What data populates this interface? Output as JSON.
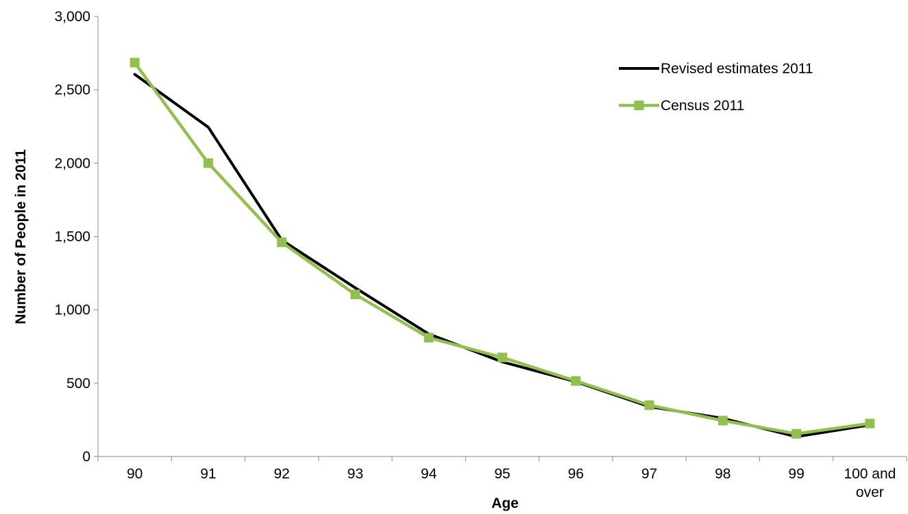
{
  "chart_data": {
    "type": "line",
    "title": "",
    "xlabel": "Age",
    "ylabel": "Number of People in 2011",
    "categories": [
      "90",
      "91",
      "92",
      "93",
      "94",
      "95",
      "96",
      "97",
      "98",
      "99",
      "100 and over"
    ],
    "ylim": [
      0,
      3000
    ],
    "yticks": [
      0,
      500,
      1000,
      1500,
      2000,
      2500,
      3000
    ],
    "ytick_labels": [
      "0",
      "500",
      "1,000",
      "1,500",
      "2,000",
      "2,500",
      "3,000"
    ],
    "grid": false,
    "legend_position": "top-right",
    "series": [
      {
        "name": "Revised estimates 2011",
        "color": "#000000",
        "marker": "none",
        "values": [
          2605,
          2245,
          1475,
          1150,
          835,
          645,
          510,
          340,
          260,
          135,
          215
        ]
      },
      {
        "name": "Census 2011",
        "color": "#92c050",
        "marker": "square",
        "values": [
          2685,
          2000,
          1460,
          1105,
          810,
          675,
          515,
          350,
          245,
          155,
          225
        ]
      }
    ]
  }
}
